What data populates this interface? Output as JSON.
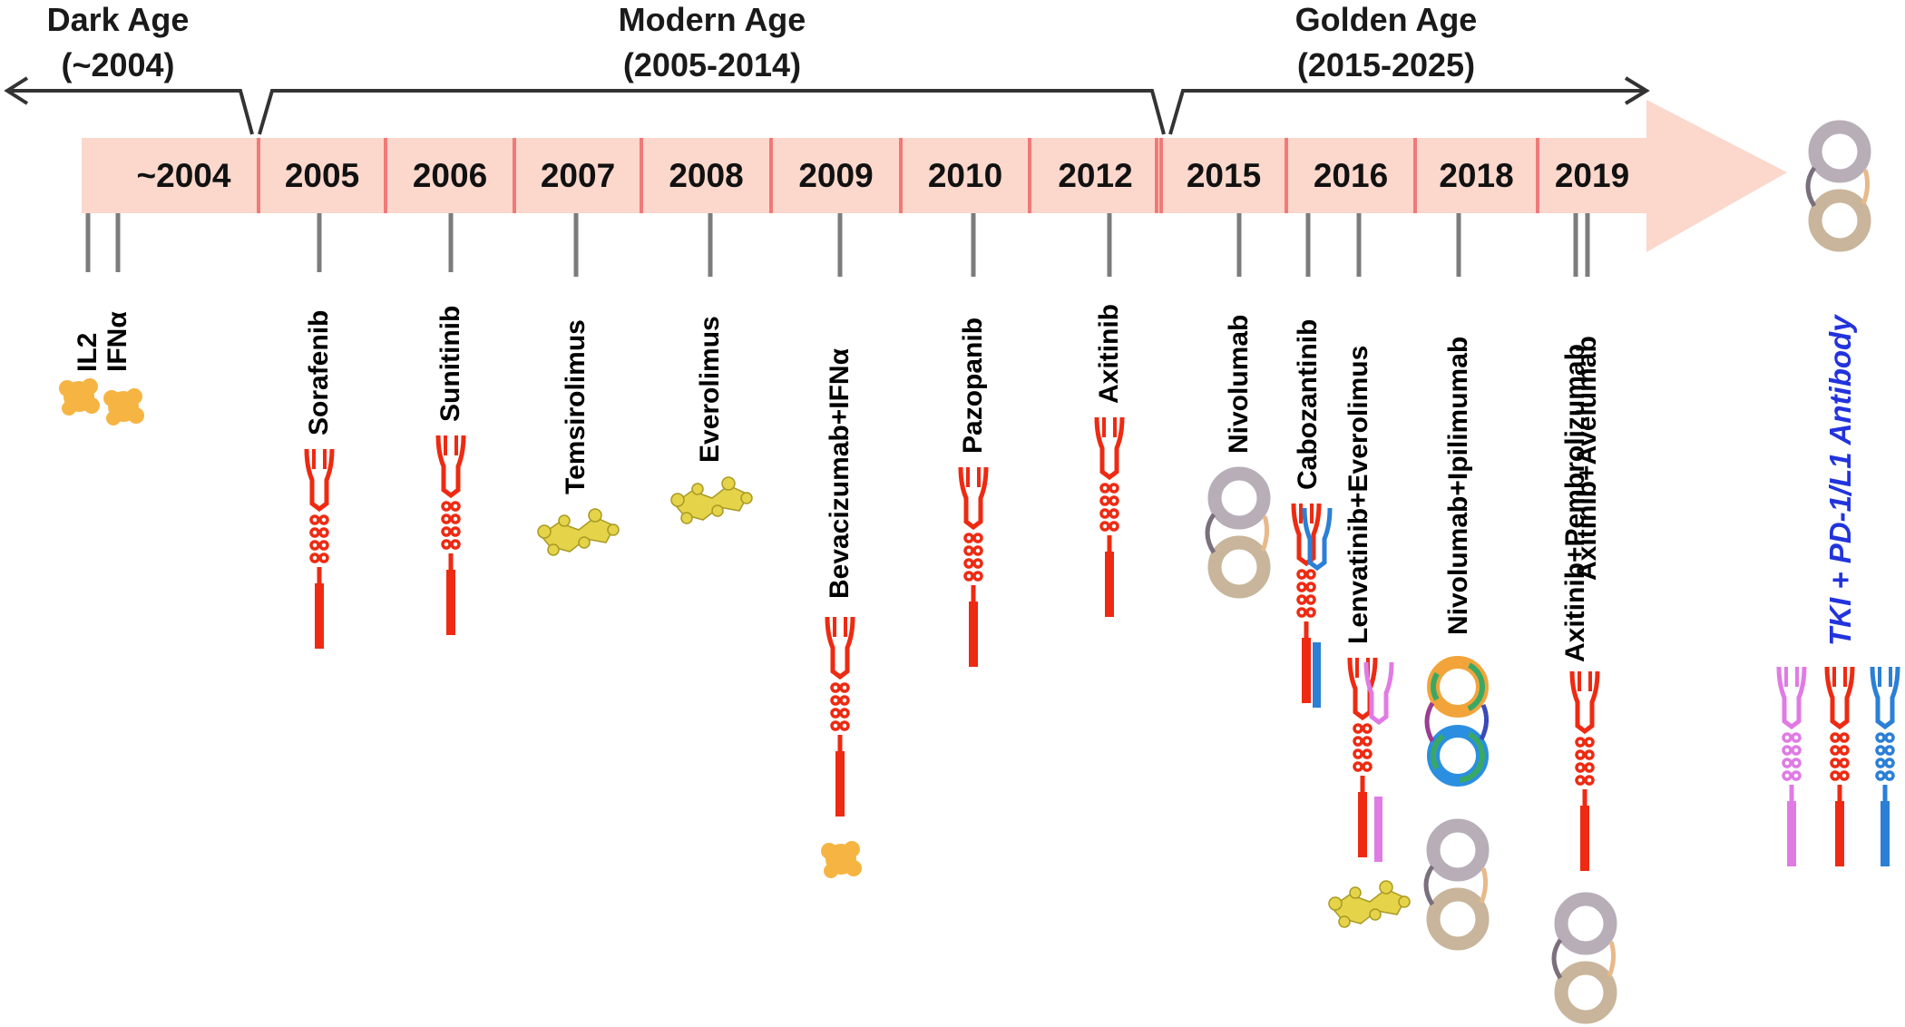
{
  "eras": [
    {
      "title": "Dark Age",
      "range": "(~2004)"
    },
    {
      "title": "Modern Age",
      "range": "(2005-2014)"
    },
    {
      "title": "Golden Age",
      "range": "(2015-2025)"
    }
  ],
  "years": [
    "~2004",
    "2005",
    "2006",
    "2007",
    "2008",
    "2009",
    "2010",
    "2012",
    "2015",
    "2016",
    "2018",
    "2019"
  ],
  "drugs": [
    {
      "label": "IL2",
      "year": "~2004",
      "type": "cytokine"
    },
    {
      "label": "IFNα",
      "year": "~2004",
      "type": "cytokine"
    },
    {
      "label": "Sorafenib",
      "year": "2005",
      "type": "tki"
    },
    {
      "label": "Sunitinib",
      "year": "2006",
      "type": "tki"
    },
    {
      "label": "Temsirolimus",
      "year": "2007",
      "type": "mtor"
    },
    {
      "label": "Everolimus",
      "year": "2008",
      "type": "mtor"
    },
    {
      "label": "Bevacizumab+IFNα",
      "year": "2009",
      "type": "combo"
    },
    {
      "label": "Pazopanib",
      "year": "2010",
      "type": "tki"
    },
    {
      "label": "Axitinib",
      "year": "2012",
      "type": "tki"
    },
    {
      "label": "Nivolumab",
      "year": "2015",
      "type": "antibody"
    },
    {
      "label": "Cabozantinib",
      "year": "2016",
      "type": "tki"
    },
    {
      "label": "Lenvatinib+Everolimus",
      "year": "2016",
      "type": "combo"
    },
    {
      "label": "Nivolumab+Ipilimumab",
      "year": "2018",
      "type": "antibody"
    },
    {
      "label": "Axitinib+Pembrolizumab",
      "year": "2019",
      "type": "combo"
    },
    {
      "label": "Axitinib+Avelumab",
      "year": "2019",
      "type": "combo"
    }
  ],
  "future": {
    "label": "TKI + PD-1/L1 Antibody"
  },
  "colors": {
    "band": "#fbd7cc",
    "divider": "#f07a78",
    "tki_red": "#ee2a12",
    "tki_blue": "#2b7fd6",
    "tki_pink": "#e07be4",
    "mtor": "#e5d34a",
    "cytokine": "#f6b443",
    "antibody_light": "#b7aeb8",
    "antibody_heavy": "#c8b59b",
    "future_label": "#2233dd"
  }
}
